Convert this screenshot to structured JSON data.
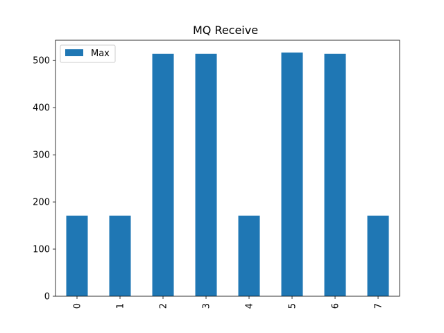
{
  "chart_data": {
    "type": "bar",
    "title": "MQ Receive",
    "xlabel": "",
    "ylabel": "",
    "categories": [
      "0",
      "1",
      "2",
      "3",
      "4",
      "5",
      "6",
      "7"
    ],
    "series": [
      {
        "name": "Max",
        "values": [
          171,
          171,
          514,
          514,
          171,
          517,
          514,
          171
        ],
        "color": "#1f77b4"
      }
    ],
    "ylim": [
      0,
      543
    ],
    "yticks": [
      0,
      100,
      200,
      300,
      400,
      500
    ],
    "legend": "top-left",
    "grid": false
  }
}
